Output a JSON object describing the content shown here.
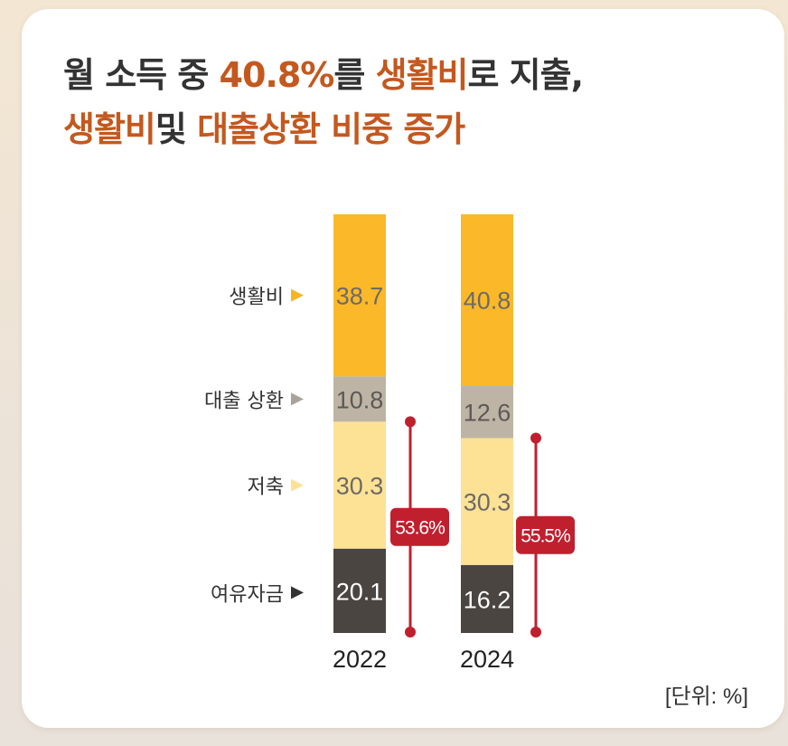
{
  "title": {
    "line1": [
      {
        "text": "월 소득 중 ",
        "highlight": false
      },
      {
        "text": "40.8%",
        "highlight": true
      },
      {
        "text": "를 ",
        "highlight": false
      },
      {
        "text": "생활비",
        "highlight": true
      },
      {
        "text": "로 지출,",
        "highlight": false
      }
    ],
    "line2": [
      {
        "text": "생활비",
        "highlight": true
      },
      {
        "text": "및 ",
        "highlight": false
      },
      {
        "text": "대출상환 비중 증가",
        "highlight": true
      }
    ]
  },
  "unit_label": "[단위: %]",
  "colors": {
    "accent": "#c4581e",
    "bracket": "#c01f2e"
  },
  "chart_data": {
    "type": "bar",
    "stacked": true,
    "categories": [
      "2022",
      "2024"
    ],
    "series": [
      {
        "name": "생활비",
        "values": [
          38.7,
          40.8
        ],
        "color": "#fbb929",
        "label_color": "#6e6a66"
      },
      {
        "name": "대출 상환",
        "values": [
          10.8,
          12.6
        ],
        "color": "#beb4a6",
        "label_color": "#5c5955"
      },
      {
        "name": "저축",
        "values": [
          30.3,
          30.3
        ],
        "color": "#fde296",
        "label_color": "#6e6a66"
      },
      {
        "name": "여유자금",
        "values": [
          20.1,
          16.2
        ],
        "color": "#4a4541",
        "label_color": "#ffffff"
      }
    ],
    "legend_marker_colors": [
      "#f8b522",
      "#a9a39b",
      "#fde296",
      "#333333"
    ],
    "bracket_labels": [
      "53.6%",
      "55.5%"
    ],
    "ylim": [
      0,
      100
    ]
  }
}
